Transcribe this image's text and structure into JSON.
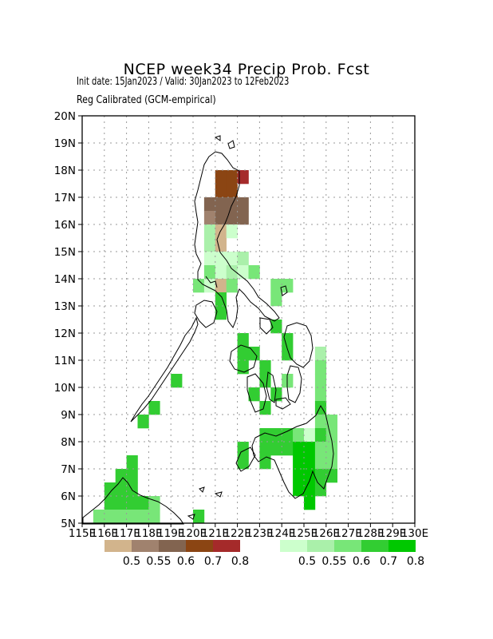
{
  "header": {
    "title": "NCEP week34 Precip Prob. Fcst",
    "subtitle_dates": "Init date: 15Jan2023 / Valid: 30Jan2023 to 12Feb2023",
    "subtitle_method": "Reg Calibrated (GCM-empirical)"
  },
  "axes": {
    "lon_labels": [
      "115E",
      "116E",
      "117E",
      "118E",
      "119E",
      "120E",
      "121E",
      "122E",
      "123E",
      "124E",
      "125E",
      "126E",
      "127E",
      "128E",
      "129E",
      "130E"
    ],
    "lat_labels": [
      "5N",
      "6N",
      "7N",
      "8N",
      "9N",
      "10N",
      "11N",
      "12N",
      "13N",
      "14N",
      "15N",
      "16N",
      "17N",
      "18N",
      "19N",
      "20N"
    ],
    "lon_range": [
      115,
      130
    ],
    "lat_range": [
      5,
      20
    ]
  },
  "legend": {
    "dry": {
      "colors": [
        "#d2b48c",
        "#a0826e",
        "#826450",
        "#8b4513",
        "#a52a2a"
      ],
      "labels": [
        "0.5",
        "0.55",
        "0.6",
        "0.7",
        "0.8"
      ]
    },
    "wet": {
      "colors": [
        "#ccffcc",
        "#aaf0aa",
        "#78e678",
        "#32cd32",
        "#00c800"
      ],
      "labels": [
        "0.5",
        "0.55",
        "0.6",
        "0.7",
        "0.8"
      ]
    }
  },
  "chart_data": {
    "type": "heatmap",
    "grid_resolution_deg": 0.5,
    "category_codes": {
      "d1": "below-normal 0.5",
      "d2": "below-normal 0.55",
      "d3": "below-normal 0.6",
      "d4": "below-normal 0.7",
      "d5": "below-normal 0.8",
      "w1": "above-normal 0.5",
      "w2": "above-normal 0.55",
      "w3": "above-normal 0.6",
      "w4": "above-normal 0.7",
      "w5": "above-normal 0.8"
    },
    "cells": [
      {
        "lon": 121.0,
        "lat": 17.5,
        "c": "d4"
      },
      {
        "lon": 121.5,
        "lat": 17.5,
        "c": "d4"
      },
      {
        "lon": 122.0,
        "lat": 17.5,
        "c": "d5"
      },
      {
        "lon": 121.0,
        "lat": 17.0,
        "c": "d4"
      },
      {
        "lon": 121.5,
        "lat": 17.0,
        "c": "d4"
      },
      {
        "lon": 120.5,
        "lat": 16.5,
        "c": "d3"
      },
      {
        "lon": 121.0,
        "lat": 16.5,
        "c": "d3"
      },
      {
        "lon": 121.5,
        "lat": 16.5,
        "c": "d3"
      },
      {
        "lon": 122.0,
        "lat": 16.5,
        "c": "d3"
      },
      {
        "lon": 120.5,
        "lat": 16.0,
        "c": "d2"
      },
      {
        "lon": 121.0,
        "lat": 16.0,
        "c": "d3"
      },
      {
        "lon": 121.5,
        "lat": 16.0,
        "c": "d3"
      },
      {
        "lon": 122.0,
        "lat": 16.0,
        "c": "d3"
      },
      {
        "lon": 120.5,
        "lat": 15.5,
        "c": "w2"
      },
      {
        "lon": 121.0,
        "lat": 15.5,
        "c": "d1"
      },
      {
        "lon": 121.5,
        "lat": 15.5,
        "c": "w1"
      },
      {
        "lon": 120.5,
        "lat": 15.0,
        "c": "w2"
      },
      {
        "lon": 121.0,
        "lat": 15.0,
        "c": "d1"
      },
      {
        "lon": 120.5,
        "lat": 14.5,
        "c": "w1"
      },
      {
        "lon": 121.0,
        "lat": 14.5,
        "c": "w1"
      },
      {
        "lon": 121.5,
        "lat": 14.5,
        "c": "w1"
      },
      {
        "lon": 122.0,
        "lat": 14.5,
        "c": "w2"
      },
      {
        "lon": 120.5,
        "lat": 14.0,
        "c": "w3"
      },
      {
        "lon": 121.0,
        "lat": 14.0,
        "c": "w1"
      },
      {
        "lon": 121.5,
        "lat": 14.0,
        "c": "w2"
      },
      {
        "lon": 122.0,
        "lat": 14.0,
        "c": "w1"
      },
      {
        "lon": 122.5,
        "lat": 14.0,
        "c": "w3"
      },
      {
        "lon": 120.0,
        "lat": 13.5,
        "c": "w3"
      },
      {
        "lon": 120.5,
        "lat": 13.5,
        "c": "w1"
      },
      {
        "lon": 121.0,
        "lat": 13.5,
        "c": "d1"
      },
      {
        "lon": 121.5,
        "lat": 13.5,
        "c": "w3"
      },
      {
        "lon": 123.5,
        "lat": 13.5,
        "c": "w3"
      },
      {
        "lon": 124.0,
        "lat": 13.5,
        "c": "w3"
      },
      {
        "lon": 121.0,
        "lat": 13.0,
        "c": "w4"
      },
      {
        "lon": 123.5,
        "lat": 13.0,
        "c": "w3"
      },
      {
        "lon": 121.0,
        "lat": 12.5,
        "c": "w4"
      },
      {
        "lon": 123.5,
        "lat": 12.0,
        "c": "w4"
      },
      {
        "lon": 122.0,
        "lat": 11.5,
        "c": "w4"
      },
      {
        "lon": 124.0,
        "lat": 11.5,
        "c": "w4"
      },
      {
        "lon": 122.0,
        "lat": 11.0,
        "c": "w4"
      },
      {
        "lon": 122.5,
        "lat": 11.0,
        "c": "w4"
      },
      {
        "lon": 124.0,
        "lat": 11.0,
        "c": "w4"
      },
      {
        "lon": 125.5,
        "lat": 11.0,
        "c": "w2"
      },
      {
        "lon": 122.0,
        "lat": 10.5,
        "c": "w4"
      },
      {
        "lon": 123.0,
        "lat": 10.5,
        "c": "w4"
      },
      {
        "lon": 125.5,
        "lat": 10.5,
        "c": "w3"
      },
      {
        "lon": 123.0,
        "lat": 10.0,
        "c": "w4"
      },
      {
        "lon": 124.0,
        "lat": 10.0,
        "c": "w3"
      },
      {
        "lon": 125.5,
        "lat": 10.0,
        "c": "w3"
      },
      {
        "lon": 119.0,
        "lat": 10.0,
        "c": "w4"
      },
      {
        "lon": 122.5,
        "lat": 9.5,
        "c": "w4"
      },
      {
        "lon": 123.5,
        "lat": 9.5,
        "c": "w4"
      },
      {
        "lon": 125.5,
        "lat": 9.5,
        "c": "w3"
      },
      {
        "lon": 118.0,
        "lat": 9.0,
        "c": "w4"
      },
      {
        "lon": 123.0,
        "lat": 9.0,
        "c": "w4"
      },
      {
        "lon": 125.5,
        "lat": 9.0,
        "c": "w4"
      },
      {
        "lon": 117.5,
        "lat": 8.5,
        "c": "w4"
      },
      {
        "lon": 125.5,
        "lat": 8.5,
        "c": "w3"
      },
      {
        "lon": 126.0,
        "lat": 8.5,
        "c": "w3"
      },
      {
        "lon": 123.0,
        "lat": 8.0,
        "c": "w4"
      },
      {
        "lon": 123.5,
        "lat": 8.0,
        "c": "w4"
      },
      {
        "lon": 124.0,
        "lat": 8.0,
        "c": "w4"
      },
      {
        "lon": 124.5,
        "lat": 8.0,
        "c": "w3"
      },
      {
        "lon": 125.0,
        "lat": 8.0,
        "c": "w1"
      },
      {
        "lon": 125.5,
        "lat": 8.0,
        "c": "w4"
      },
      {
        "lon": 126.0,
        "lat": 8.0,
        "c": "w3"
      },
      {
        "lon": 122.0,
        "lat": 7.5,
        "c": "w4"
      },
      {
        "lon": 123.0,
        "lat": 7.5,
        "c": "w4"
      },
      {
        "lon": 123.5,
        "lat": 7.5,
        "c": "w4"
      },
      {
        "lon": 124.0,
        "lat": 7.5,
        "c": "w4"
      },
      {
        "lon": 124.5,
        "lat": 7.5,
        "c": "w5"
      },
      {
        "lon": 125.0,
        "lat": 7.5,
        "c": "w5"
      },
      {
        "lon": 125.5,
        "lat": 7.5,
        "c": "w3"
      },
      {
        "lon": 126.0,
        "lat": 7.5,
        "c": "w3"
      },
      {
        "lon": 122.0,
        "lat": 7.0,
        "c": "w4"
      },
      {
        "lon": 123.0,
        "lat": 7.0,
        "c": "w4"
      },
      {
        "lon": 124.5,
        "lat": 7.0,
        "c": "w5"
      },
      {
        "lon": 125.0,
        "lat": 7.0,
        "c": "w5"
      },
      {
        "lon": 125.5,
        "lat": 7.0,
        "c": "w3"
      },
      {
        "lon": 126.0,
        "lat": 7.0,
        "c": "w3"
      },
      {
        "lon": 117.0,
        "lat": 7.0,
        "c": "w4"
      },
      {
        "lon": 116.5,
        "lat": 6.5,
        "c": "w4"
      },
      {
        "lon": 117.0,
        "lat": 6.5,
        "c": "w4"
      },
      {
        "lon": 124.5,
        "lat": 6.5,
        "c": "w5"
      },
      {
        "lon": 125.0,
        "lat": 6.5,
        "c": "w5"
      },
      {
        "lon": 125.5,
        "lat": 6.5,
        "c": "w4"
      },
      {
        "lon": 126.0,
        "lat": 6.5,
        "c": "w4"
      },
      {
        "lon": 116.0,
        "lat": 6.0,
        "c": "w4"
      },
      {
        "lon": 116.5,
        "lat": 6.0,
        "c": "w4"
      },
      {
        "lon": 117.0,
        "lat": 6.0,
        "c": "w4"
      },
      {
        "lon": 124.5,
        "lat": 6.0,
        "c": "w5"
      },
      {
        "lon": 125.0,
        "lat": 6.0,
        "c": "w5"
      },
      {
        "lon": 125.5,
        "lat": 6.0,
        "c": "w4"
      },
      {
        "lon": 116.0,
        "lat": 5.5,
        "c": "w4"
      },
      {
        "lon": 116.5,
        "lat": 5.5,
        "c": "w4"
      },
      {
        "lon": 117.0,
        "lat": 5.5,
        "c": "w4"
      },
      {
        "lon": 117.5,
        "lat": 5.5,
        "c": "w4"
      },
      {
        "lon": 118.0,
        "lat": 5.5,
        "c": "w3"
      },
      {
        "lon": 125.0,
        "lat": 5.5,
        "c": "w5"
      },
      {
        "lon": 115.5,
        "lat": 5.0,
        "c": "w3"
      },
      {
        "lon": 116.0,
        "lat": 5.0,
        "c": "w3"
      },
      {
        "lon": 116.5,
        "lat": 5.0,
        "c": "w3"
      },
      {
        "lon": 117.0,
        "lat": 5.0,
        "c": "w3"
      },
      {
        "lon": 117.5,
        "lat": 5.0,
        "c": "w3"
      },
      {
        "lon": 118.0,
        "lat": 5.0,
        "c": "w3"
      },
      {
        "lon": 120.0,
        "lat": 5.0,
        "c": "w4"
      }
    ]
  }
}
